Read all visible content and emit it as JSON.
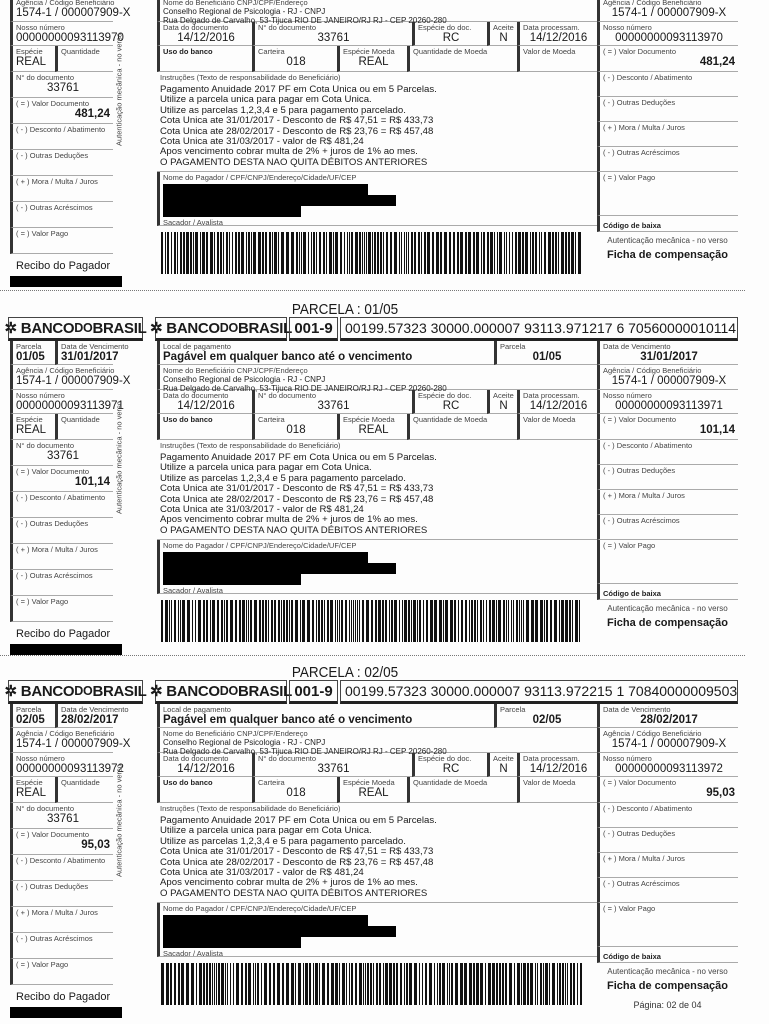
{
  "labels": {
    "bank_name_a": "BANCO",
    "bank_name_b": "DO",
    "bank_name_c": "BRASIL",
    "bank_code": "001-9",
    "parcela": "Parcela",
    "data_vencimento": "Data de Vencimento",
    "agencia": "Agência / Código Beneficiário",
    "nosso_numero": "Nosso número",
    "especie": "Espécie",
    "quantidade": "Quantidade",
    "n_documento_left": "N° do documento",
    "valor_documento": "( = ) Valor Documento",
    "desconto": "( - ) Desconto / Abatimento",
    "outras_deducoes": "( - ) Outras Deduções",
    "mora": "( + ) Mora / Multa / Juros",
    "outros_acrescimos": "( - ) Outras Acréscimos",
    "valor_pago": "( = ) Valor Pago",
    "recibo": "Recibo do Pagador",
    "auth_vertical": "Autenticação mecânica - no verso",
    "local_pagamento": "Local de pagamento",
    "beneficiario": "Nome do Beneficiário CNPJ/CPF/Endereço",
    "data_documento": "Data do documento",
    "n_documento": "N° do documento",
    "especie_doc": "Espécie do doc.",
    "aceite": "Aceite",
    "data_processamento": "Data processam.",
    "uso_banco": "Uso do banco",
    "carteira": "Carteira",
    "especie_moeda": "Espécie Moeda",
    "quantidade_moeda": "Quantidade de Moeda",
    "valor_moeda": "Valor de Moeda",
    "instrucoes": "Instruções (Texto de responsabilidade do Beneficiário)",
    "pagador": "Nome do Pagador / CPF/CNPJ/Endereço/Cidade/UF/CEP",
    "sacador": "Sacador / Avalista",
    "codigo_baixa": "Código de baixa",
    "auth": "Autenticação mecânica -  no verso",
    "ficha": "Ficha de compensação"
  },
  "common": {
    "agencia": "1574-1 / 000007909-X",
    "especie": "REAL",
    "n_documento": "33761",
    "local_pagamento": "Pagável em qualquer banco até o vencimento",
    "beneficiario_nome": "Conselho Regional de Psicologia - RJ - CNPJ",
    "beneficiario_endereco": "Rua Delgado de Carvalho, 53-Tijuca  RIO DE JANEIRO/RJ RJ  -   CEP 20260-280",
    "data_documento": "14/12/2016",
    "especie_doc": "RC",
    "aceite": "N",
    "data_processamento": "14/12/2016",
    "carteira": "018",
    "especie_moeda": "REAL",
    "instrucoes": [
      "Pagamento Anuidade 2017 PF em Cota Unica ou em 5 Parcelas.",
      "Utilize a parcela unica para pagar em Cota Unica.",
      "Utilize as parcelas 1,2,3,4 e 5 para pagamento parcelado.",
      "Cota Unica ate 31/01/2017 - Desconto de R$ 47,51 = R$ 433,73",
      "Cota Unica ate 28/02/2017 - Desconto de R$ 23,76 = R$ 457,48",
      "Cota Unica ate 31/03/2017 - valor de R$ 481,24",
      "Apos vencimento cobrar multa de 2% +  juros de 1% ao mes.",
      "O PAGAMENTO DESTA NAO QUITA DÉBITOS ANTERIORES"
    ]
  },
  "slips": [
    {
      "nosso_numero": "00000000093113970",
      "valor_documento": "481,24"
    },
    {
      "title": "PARCELA : 01/05",
      "parcela": "01/05",
      "vencimento": "31/01/2017",
      "linha_digitavel": "00199.57323 30000.000007 93113.971217 6 70560000010114",
      "nosso_numero": "00000000093113971",
      "valor_documento": "101,14"
    },
    {
      "title": "PARCELA : 02/05",
      "parcela": "02/05",
      "vencimento": "28/02/2017",
      "linha_digitavel": "00199.57323 30000.000007 93113.972215 1 70840000009503",
      "nosso_numero": "00000000093113972",
      "valor_documento": "95,03"
    }
  ],
  "footer": {
    "page": "Página: 02 de 04"
  },
  "icons": {
    "bank_logo": "banco-do-brasil-logo-icon"
  }
}
